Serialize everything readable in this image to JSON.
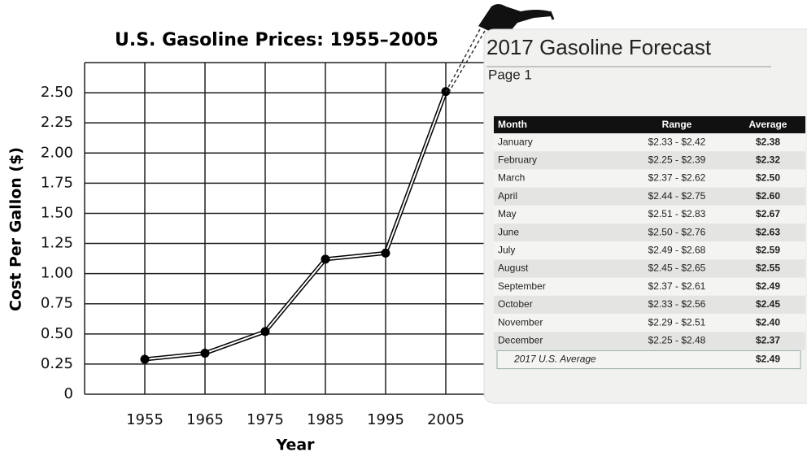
{
  "chart_data": {
    "type": "line",
    "title": "U.S. Gasoline Prices: 1955–2005",
    "x_label": "Year",
    "y_label": "Cost Per Gallon ($)",
    "x": [
      1955,
      1965,
      1975,
      1985,
      1995,
      2005
    ],
    "series": [
      {
        "color": "#000000",
        "values": [
          0.29,
          0.34,
          0.52,
          1.12,
          1.17,
          2.51
        ]
      }
    ],
    "xlim": [
      1945,
      2015
    ],
    "xticks": [
      1955,
      1965,
      1975,
      1985,
      1995,
      2005
    ],
    "ylim": [
      0,
      2.75
    ],
    "yticks": [
      0,
      0.25,
      {
        "value": 0.5,
        "label": "0.50"
      },
      0.75,
      {
        "value": 1,
        "label": "1.00"
      },
      1.25,
      {
        "value": 1.5,
        "label": "1.50"
      },
      1.75,
      {
        "value": 2,
        "label": "2.00"
      },
      2.25,
      {
        "value": 2.5,
        "label": "2.50"
      }
    ],
    "grid": true
  },
  "forecast": {
    "title": "2017 Gasoline Forecast",
    "subtitle": "Page 1",
    "header": [
      "Month",
      "Range",
      "Average"
    ],
    "rows": [
      [
        "January",
        "$2.33 - $2.42",
        "$2.38"
      ],
      [
        "February",
        "$2.25 - $2.39",
        "$2.32"
      ],
      [
        "March",
        "$2.37 - $2.62",
        "$2.50"
      ],
      [
        "April",
        "$2.44 - $2.75",
        "$2.60"
      ],
      [
        "May",
        "$2.51 - $2.83",
        "$2.67"
      ],
      [
        "June",
        "$2.50 - $2.76",
        "$2.63"
      ],
      [
        "July",
        "$2.49 - $2.68",
        "$2.59"
      ],
      [
        "August",
        "$2.45 - $2.65",
        "$2.55"
      ],
      [
        "September",
        "$2.37 - $2.61",
        "$2.49"
      ],
      [
        "October",
        "$2.33 - $2.56",
        "$2.45"
      ],
      [
        "November",
        "$2.29 - $2.51",
        "$2.40"
      ],
      [
        "December",
        "$2.25 - $2.48",
        "$2.37"
      ]
    ],
    "footer": [
      "2017 U.S. Average",
      "$2.49"
    ]
  }
}
